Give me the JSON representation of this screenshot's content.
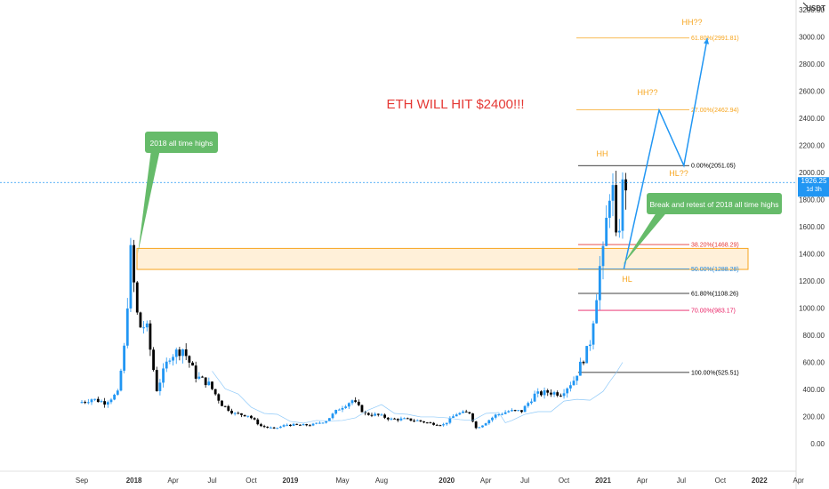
{
  "chart_data": {
    "type": "candlestick",
    "currency_label": "USDT",
    "price": {
      "value": "1926.25",
      "timer": "1d 3h"
    },
    "y_ticks": [
      "0.00",
      "200.00",
      "400.00",
      "600.00",
      "800.00",
      "1000.00",
      "1200.00",
      "1400.00",
      "1600.00",
      "1800.00",
      "2000.00",
      "2200.00",
      "2400.00",
      "2600.00",
      "2800.00",
      "3000.00",
      "3200.00"
    ],
    "ylim": [
      -50,
      3350
    ],
    "x_labels": [
      {
        "label": "Sep",
        "m": 0
      },
      {
        "label": "2018",
        "m": 4
      },
      {
        "label": "Apr",
        "m": 7
      },
      {
        "label": "Jul",
        "m": 10
      },
      {
        "label": "Oct",
        "m": 13
      },
      {
        "label": "2019",
        "m": 16
      },
      {
        "label": "May",
        "m": 20
      },
      {
        "label": "Aug",
        "m": 23
      },
      {
        "label": "2020",
        "m": 28
      },
      {
        "label": "Apr",
        "m": 31
      },
      {
        "label": "Jul",
        "m": 34
      },
      {
        "label": "Oct",
        "m": 37
      },
      {
        "label": "2021",
        "m": 40
      },
      {
        "label": "Apr",
        "m": 43
      },
      {
        "label": "Jul",
        "m": 46
      },
      {
        "label": "Oct",
        "m": 49
      },
      {
        "label": "2022",
        "m": 52
      },
      {
        "label": "Apr",
        "m": 55
      }
    ],
    "series": [
      {
        "values": [
          {
            "m": 0,
            "p": 300
          },
          {
            "m": 1,
            "p": 330
          },
          {
            "m": 2,
            "p": 305
          },
          {
            "m": 3,
            "p": 370
          },
          {
            "m": 3.5,
            "p": 700
          },
          {
            "m": 4,
            "p": 1400
          },
          {
            "m": 4.6,
            "p": 860
          },
          {
            "m": 5.2,
            "p": 870
          },
          {
            "m": 6,
            "p": 400
          },
          {
            "m": 7,
            "p": 650
          },
          {
            "m": 8,
            "p": 700
          },
          {
            "m": 9,
            "p": 500
          },
          {
            "m": 10,
            "p": 440
          },
          {
            "m": 11,
            "p": 290
          },
          {
            "m": 12,
            "p": 220
          },
          {
            "m": 13,
            "p": 210
          },
          {
            "m": 14,
            "p": 130
          },
          {
            "m": 15,
            "p": 110
          },
          {
            "m": 16,
            "p": 140
          },
          {
            "m": 17,
            "p": 135
          },
          {
            "m": 18,
            "p": 140
          },
          {
            "m": 19,
            "p": 170
          },
          {
            "m": 20,
            "p": 260
          },
          {
            "m": 21,
            "p": 320
          },
          {
            "m": 22,
            "p": 220
          },
          {
            "m": 23,
            "p": 210
          },
          {
            "m": 24,
            "p": 180
          },
          {
            "m": 25,
            "p": 180
          },
          {
            "m": 26,
            "p": 170
          },
          {
            "m": 27,
            "p": 150
          },
          {
            "m": 28,
            "p": 140
          },
          {
            "m": 29,
            "p": 220
          },
          {
            "m": 30,
            "p": 230
          },
          {
            "m": 30.5,
            "p": 115
          },
          {
            "m": 31,
            "p": 140
          },
          {
            "m": 32,
            "p": 210
          },
          {
            "m": 33,
            "p": 240
          },
          {
            "m": 34,
            "p": 240
          },
          {
            "m": 35,
            "p": 360
          },
          {
            "m": 36,
            "p": 380
          },
          {
            "m": 37,
            "p": 370
          },
          {
            "m": 38,
            "p": 470
          },
          {
            "m": 38.6,
            "p": 600
          },
          {
            "m": 39.2,
            "p": 720
          },
          {
            "m": 39.6,
            "p": 1000
          },
          {
            "m": 40,
            "p": 1300
          },
          {
            "m": 40.3,
            "p": 1400
          },
          {
            "m": 40.6,
            "p": 1750
          },
          {
            "m": 40.9,
            "p": 2000
          },
          {
            "m": 41.1,
            "p": 1700
          },
          {
            "m": 41.3,
            "p": 1400
          },
          {
            "m": 41.6,
            "p": 1750
          },
          {
            "m": 41.8,
            "p": 1926
          }
        ]
      }
    ],
    "fib_levels": [
      {
        "label": "0.00%(2051.05)",
        "price": 2051.05,
        "color": "#000000"
      },
      {
        "label": "27.00%(2462.94)",
        "price": 2462.94,
        "color": "#f7a51e"
      },
      {
        "label": "61.80%(2991.81)",
        "price": 2991.81,
        "color": "#f7a51e"
      },
      {
        "label": "38.20%(1468.29)",
        "price": 1468.29,
        "color": "#e53935"
      },
      {
        "label": "50.00%(1288.28)",
        "price": 1288.28,
        "color": "#1e88e5"
      },
      {
        "label": "61.80%(1108.26)",
        "price": 1108.26,
        "color": "#000000"
      },
      {
        "label": "70.00%(983.17)",
        "price": 983.17,
        "color": "#e91e63"
      },
      {
        "label": "100.00%(525.51)",
        "price": 525.51,
        "color": "#000000"
      }
    ],
    "zone": {
      "top": 1440,
      "bottom": 1285
    },
    "annotations": {
      "headline": "ETH WILL HIT $2400!!!",
      "hh": "HH",
      "hh2": "HH??",
      "hh3": "HH??",
      "hl2": "HL??",
      "hl": "HL",
      "callout_2018": "2018 all time highs",
      "callout_break": "Break and retest of 2018 all time highs"
    },
    "projection": [
      {
        "m": 41.6,
        "p": 1290
      },
      {
        "m": 44.3,
        "p": 2460
      },
      {
        "m": 46.2,
        "p": 2051
      },
      {
        "m": 48.0,
        "p": 2990
      }
    ],
    "colors": {
      "up": "#2196f3",
      "down": "#000000",
      "accent": "#f7a51e",
      "red": "#e53935",
      "green": "#66bb6a",
      "projection": "#2196f3",
      "zone_fill": "#fff0d9"
    }
  }
}
